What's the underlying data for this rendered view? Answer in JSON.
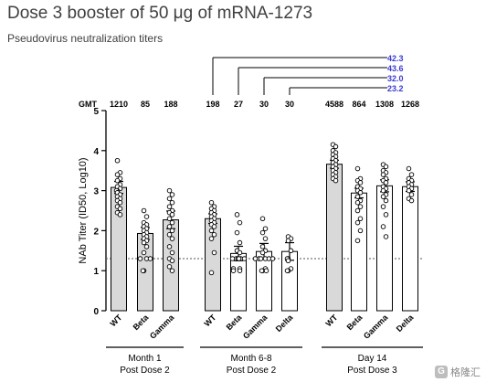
{
  "title": "Dose 3 booster of 50 μg of mRNA-1273",
  "subtitle": "Pseudovirus neutralization titers",
  "watermark": "格隆汇",
  "chart_data": {
    "type": "bar",
    "ylabel": "NAb Titer (ID50, Log10)",
    "ylim": [
      0,
      5
    ],
    "yticks": [
      0,
      1,
      2,
      3,
      4,
      5
    ],
    "lloq": 1.3,
    "gmt_label": "GMT",
    "groups": [
      {
        "label_line1": "Month 1",
        "label_line2": "Post Dose 2",
        "categories": [
          "WT",
          "Beta",
          "Gamma"
        ]
      },
      {
        "label_line1": "Month 6-8",
        "label_line2": "Post Dose 2",
        "categories": [
          "WT",
          "Beta",
          "Gamma",
          "Delta"
        ]
      },
      {
        "label_line1": "Day 14",
        "label_line2": "Post Dose 3",
        "categories": [
          "WT",
          "Beta",
          "Gamma",
          "Delta"
        ]
      }
    ],
    "bars": [
      {
        "variant": "WT",
        "group": 0,
        "value": 3.08,
        "err": 0.15,
        "gmt": "1210",
        "color": "#d9d9d9"
      },
      {
        "variant": "Beta",
        "group": 0,
        "value": 1.93,
        "err": 0.15,
        "gmt": "85",
        "color": "#d9d9d9"
      },
      {
        "variant": "Gamma",
        "group": 0,
        "value": 2.27,
        "err": 0.22,
        "gmt": "188",
        "color": "#d9d9d9"
      },
      {
        "variant": "WT",
        "group": 1,
        "value": 2.3,
        "err": 0.12,
        "gmt": "198",
        "color": "#d9d9d9"
      },
      {
        "variant": "Beta",
        "group": 1,
        "value": 1.43,
        "err": 0.18,
        "gmt": "27",
        "color": "#ffffff"
      },
      {
        "variant": "Gamma",
        "group": 1,
        "value": 1.48,
        "err": 0.2,
        "gmt": "30",
        "color": "#ffffff"
      },
      {
        "variant": "Delta",
        "group": 1,
        "value": 1.48,
        "err": 0.22,
        "gmt": "30",
        "color": "#ffffff"
      },
      {
        "variant": "WT",
        "group": 2,
        "value": 3.66,
        "err": 0.1,
        "gmt": "4588",
        "color": "#d9d9d9"
      },
      {
        "variant": "Beta",
        "group": 2,
        "value": 2.94,
        "err": 0.12,
        "gmt": "864",
        "color": "#ffffff"
      },
      {
        "variant": "Gamma",
        "group": 2,
        "value": 3.12,
        "err": 0.15,
        "gmt": "1308",
        "color": "#ffffff"
      },
      {
        "variant": "Delta",
        "group": 2,
        "value": 3.1,
        "err": 0.12,
        "gmt": "1268",
        "color": "#ffffff"
      }
    ],
    "points": [
      [
        3.75,
        3.45,
        3.4,
        3.3,
        3.25,
        3.15,
        3.1,
        3.05,
        3.0,
        3.0,
        2.95,
        2.9,
        2.85,
        2.8,
        2.75,
        2.7,
        2.6,
        2.55,
        2.45,
        2.4
      ],
      [
        2.5,
        2.35,
        2.2,
        2.15,
        2.1,
        2.05,
        2.0,
        1.95,
        1.9,
        1.85,
        1.8,
        1.75,
        1.7,
        1.6,
        1.45,
        1.3,
        1.3,
        1.3,
        1.0,
        1.0
      ],
      [
        3.0,
        2.9,
        2.8,
        2.7,
        2.6,
        2.5,
        2.45,
        2.4,
        2.3,
        2.2,
        2.1,
        2.0,
        1.9,
        1.8,
        1.6,
        1.45,
        1.3,
        1.25,
        1.1,
        1.0
      ],
      [
        2.7,
        2.6,
        2.55,
        2.5,
        2.45,
        2.4,
        2.35,
        2.3,
        2.25,
        2.2,
        2.15,
        2.1,
        2.0,
        1.9,
        1.8,
        1.45,
        0.95
      ],
      [
        2.4,
        2.2,
        1.95,
        1.7,
        1.5,
        1.45,
        1.3,
        1.3,
        1.3,
        1.3,
        1.3,
        1.3,
        1.3,
        1.05,
        1.05,
        1.0,
        1.0
      ],
      [
        2.3,
        2.05,
        1.95,
        1.8,
        1.6,
        1.5,
        1.45,
        1.3,
        1.3,
        1.3,
        1.3,
        1.3,
        1.3,
        1.05,
        1.0,
        1.0,
        1.0
      ],
      [
        1.85,
        1.8,
        1.75,
        1.5,
        1.3,
        1.3,
        1.25,
        1.05,
        1.0,
        1.0
      ],
      [
        4.15,
        4.1,
        4.0,
        3.95,
        3.9,
        3.85,
        3.8,
        3.75,
        3.7,
        3.65,
        3.6,
        3.55,
        3.5,
        3.45,
        3.4,
        3.35,
        3.3,
        3.25
      ],
      [
        3.55,
        3.3,
        3.25,
        3.2,
        3.1,
        3.05,
        3.0,
        2.95,
        2.85,
        2.75,
        2.7,
        2.6,
        2.5,
        2.3,
        2.2,
        2.0,
        1.75
      ],
      [
        3.65,
        3.6,
        3.5,
        3.45,
        3.4,
        3.3,
        3.25,
        3.2,
        3.1,
        3.05,
        3.0,
        2.9,
        2.85,
        2.75,
        2.6,
        2.4,
        2.1,
        1.85
      ],
      [
        3.55,
        3.4,
        3.3,
        3.25,
        3.2,
        3.15,
        3.1,
        3.05,
        3.0,
        2.9,
        2.8,
        2.75
      ]
    ],
    "comparisons": [
      {
        "from": 8,
        "value": "23.2"
      },
      {
        "from": 9,
        "value": "32.0"
      },
      {
        "from": 10,
        "value": "43.6"
      },
      {
        "from": 11,
        "value": "42.3"
      }
    ],
    "comparison_color": "#3b3bd1"
  }
}
